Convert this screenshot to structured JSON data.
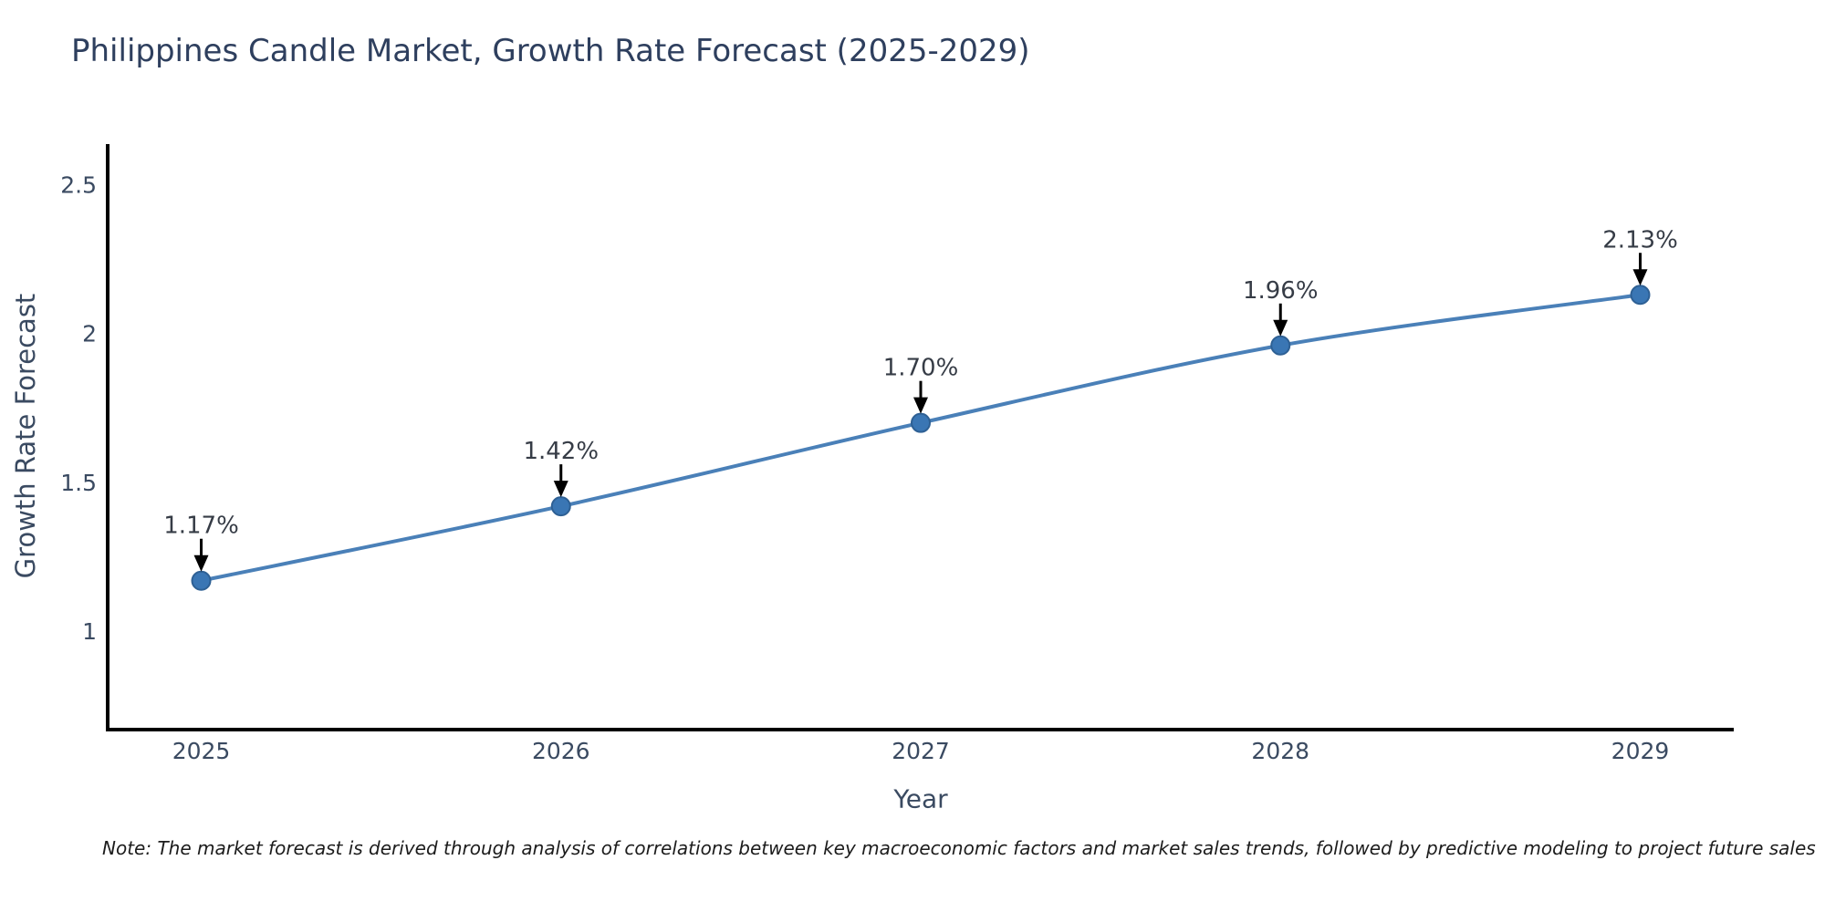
{
  "note": "Note: The market forecast is derived through analysis of correlations between key macroeconomic factors and market sales trends, followed by predictive modeling to project future sales",
  "chart_data": {
    "type": "line",
    "title": "Philippines Candle Market, Growth Rate Forecast (2025-2029)",
    "xlabel": "Year",
    "ylabel": "Growth Rate Forecast",
    "x": [
      2025,
      2026,
      2027,
      2028,
      2029
    ],
    "values": [
      1.17,
      1.42,
      1.7,
      1.96,
      2.13
    ],
    "labels": [
      "1.17%",
      "1.42%",
      "1.70%",
      "1.96%",
      "2.13%"
    ],
    "x_ticks": [
      "2025",
      "2026",
      "2027",
      "2028",
      "2029"
    ],
    "y_ticks": [
      2.5,
      2,
      1.5,
      1
    ],
    "xlim": [
      2024.74,
      2029.26
    ],
    "ylim": [
      0.67,
      2.63
    ],
    "grid": false,
    "legend": "none",
    "annotation_arrows": true,
    "colors": {
      "line": "#4a80b8",
      "marker": "#3a76b4",
      "marker_edge": "#2e6094",
      "axis": "#000000",
      "title_text": "#2e3f5e",
      "tick_text": "#3a4a61",
      "axis_title_text": "#3a4a61",
      "annotation_text": "#363c46",
      "note_text": "#1c1c1c",
      "arrow": "#000000",
      "background": "#ffffff"
    }
  }
}
